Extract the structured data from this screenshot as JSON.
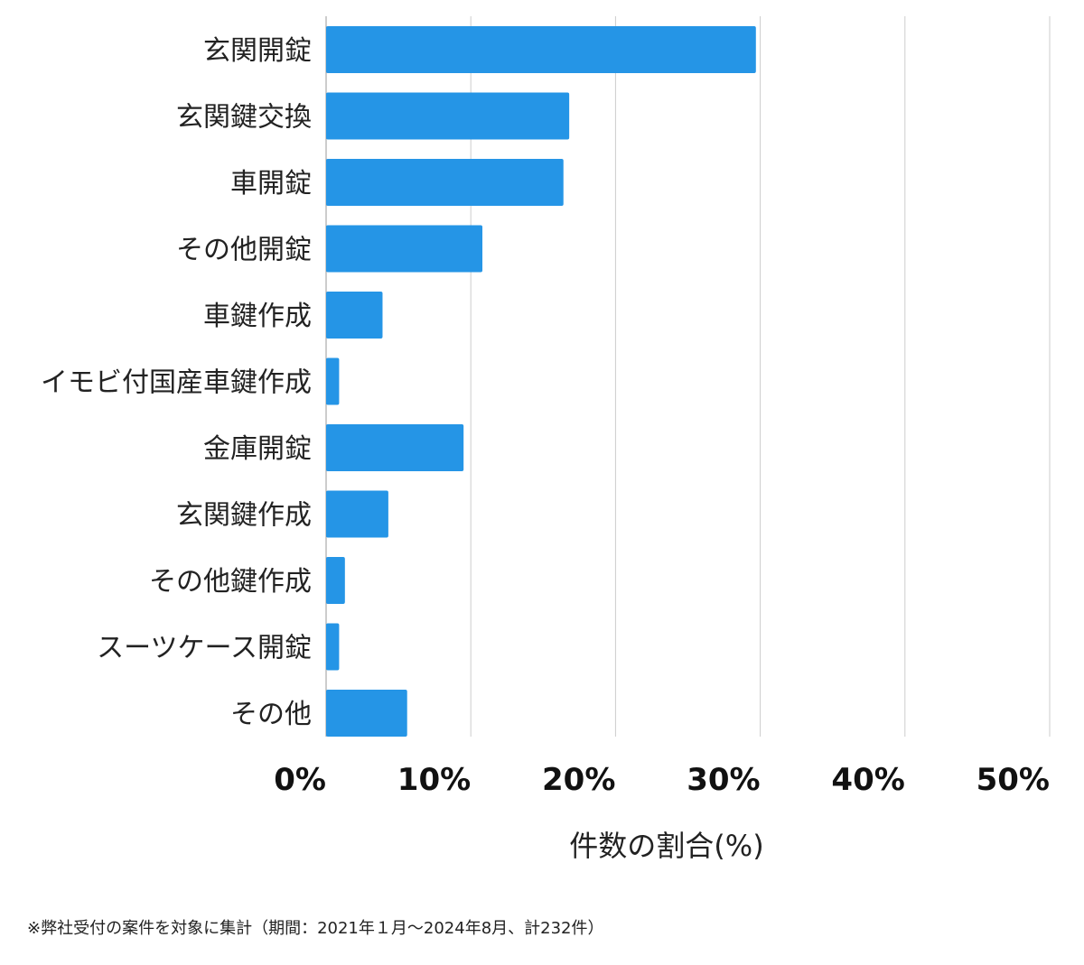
{
  "chart_data": {
    "type": "bar",
    "orientation": "horizontal",
    "categories": [
      "玄関開錠",
      "玄関鍵交換",
      "車開錠",
      "その他開錠",
      "車鍵作成",
      "イモビ付国産車鍵作成",
      "金庫開錠",
      "玄関鍵作成",
      "その他鍵作成",
      "スーツケース開錠",
      "その他"
    ],
    "values": [
      29.7,
      16.8,
      16.4,
      10.8,
      3.9,
      0.9,
      9.5,
      4.3,
      1.3,
      0.9,
      5.6
    ],
    "xlabel": "件数の割合(%)",
    "ylabel": "",
    "xlim": [
      0,
      50
    ],
    "xticks": [
      "0%",
      "10%",
      "20%",
      "30%",
      "40%",
      "50%"
    ],
    "grid": "vertical",
    "bar_color": "#2595e6",
    "grid_color": "#cccccc"
  },
  "footnote": "※弊社受付の案件を対象に集計（期間：2021年１月〜2024年8月、計232件）"
}
